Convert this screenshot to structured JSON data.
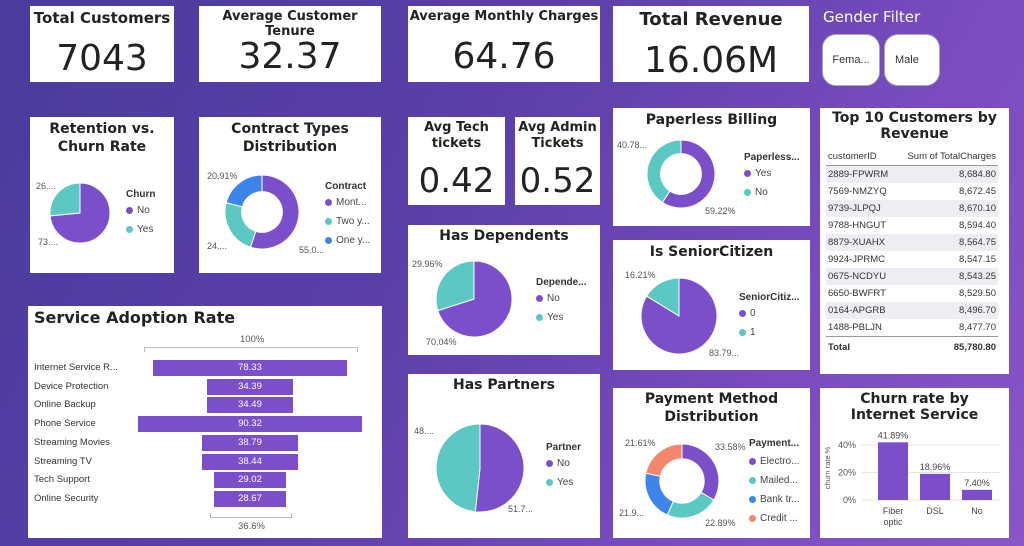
{
  "kpis": {
    "total_customers": {
      "title": "Total Customers",
      "value": "7043"
    },
    "avg_tenure": {
      "title": "Average Customer Tenure",
      "value": "32.37"
    },
    "avg_monthly": {
      "title": "Average Monthly Charges",
      "value": "64.76"
    },
    "total_revenue": {
      "title": "Total Revenue",
      "value": "16.06M"
    },
    "avg_tech": {
      "title": "Avg Tech tickets",
      "value": "0.42"
    },
    "avg_admin": {
      "title": "Avg Admin Tickets",
      "value": "0.52"
    }
  },
  "gender_filter": {
    "title": "Gender Filter",
    "buttons": [
      "Fema...",
      "Male"
    ]
  },
  "colors": {
    "purple": "#7b4fc9",
    "teal": "#5bc8c3",
    "blue": "#3d85e8",
    "salmon": "#f2876b"
  },
  "retention": {
    "title_line1": "Retention vs.",
    "title_line2": "Churn Rate",
    "legend_title": "Churn",
    "legend": [
      "No",
      "Yes"
    ],
    "label_yes": "26....",
    "label_no": "73....",
    "values": [
      73.46,
      26.54
    ]
  },
  "contract": {
    "title_line1": "Contract Types",
    "title_line2": "Distribution",
    "legend_title": "Contract",
    "legend": [
      "Mont...",
      "Two y...",
      "One y..."
    ],
    "label_one": "20.91%",
    "label_two": "24....",
    "label_month": "55.0...",
    "values": [
      55.02,
      24.07,
      20.91
    ]
  },
  "paperless": {
    "title": "Paperless Billing",
    "legend_title": "Paperless...",
    "legend": [
      "Yes",
      "No"
    ],
    "label_no": "40.78...",
    "label_yes": "59.22%",
    "values": [
      59.22,
      40.78
    ]
  },
  "top10": {
    "title_line1": "Top 10 Customers by",
    "title_line2": "Revenue",
    "col1": "customerID",
    "col2": "Sum of TotalCharges",
    "rows": [
      {
        "id": "2889-FPWRM",
        "val": "8,684.80"
      },
      {
        "id": "7569-NMZYQ",
        "val": "8,672.45"
      },
      {
        "id": "9739-JLPQJ",
        "val": "8,670.10"
      },
      {
        "id": "9788-HNGUT",
        "val": "8,594.40"
      },
      {
        "id": "8879-XUAHX",
        "val": "8,564.75"
      },
      {
        "id": "9924-JPRMC",
        "val": "8,547.15"
      },
      {
        "id": "0675-NCDYU",
        "val": "8,543.25"
      },
      {
        "id": "6650-BWFRT",
        "val": "8,529.50"
      },
      {
        "id": "0164-APGRB",
        "val": "8,496.70"
      },
      {
        "id": "1488-PBLJN",
        "val": "8,477.70"
      }
    ],
    "total_label": "Total",
    "total_val": "85,780.80"
  },
  "dependents": {
    "title": "Has Dependents",
    "legend_title": "Depende...",
    "legend": [
      "No",
      "Yes"
    ],
    "label_yes": "29.96%",
    "label_no": "70.04%",
    "values": [
      70.04,
      29.96
    ]
  },
  "senior": {
    "title": "Is SeniorCitizen",
    "legend_title": "SeniorCitiz...",
    "legend": [
      "0",
      "1"
    ],
    "label_one": "16.21%",
    "label_zero": "83.79...",
    "values": [
      83.79,
      16.21
    ]
  },
  "partners": {
    "title": "Has Partners",
    "legend_title": "Partner",
    "legend": [
      "No",
      "Yes"
    ],
    "label_yes": "48....",
    "label_no": "51.7...",
    "values": [
      51.7,
      48.3
    ]
  },
  "payment": {
    "title_line1": "Payment Method",
    "title_line2": "Distribution",
    "legend_title": "Payment...",
    "legend": [
      "Electro...",
      "Mailed...",
      "Bank tr...",
      "Credit ..."
    ],
    "label_credit": "21.61%",
    "label_elec": "33.58%",
    "label_bank": "21.9...",
    "label_mail": "22.89%",
    "values": [
      33.58,
      22.89,
      21.92,
      21.61
    ]
  },
  "service": {
    "title": "Service Adoption Rate",
    "top_label": "100%",
    "bottom_label": "36.6%",
    "items": [
      {
        "label": "Internet Service R...",
        "value": 78.33
      },
      {
        "label": "Device Protection",
        "value": 34.39
      },
      {
        "label": "Online Backup",
        "value": 34.49
      },
      {
        "label": "Phone Service",
        "value": 90.32
      },
      {
        "label": "Streaming Movies",
        "value": 38.79
      },
      {
        "label": "Streaming TV",
        "value": 38.44
      },
      {
        "label": "Tech Support",
        "value": 29.02
      },
      {
        "label": "Online Security",
        "value": 28.67
      }
    ]
  },
  "chart_data": {
    "type": "bar",
    "title": "Churn rate by Internet Service",
    "ylabel": "churn rate %",
    "categories": [
      "Fiber optic",
      "DSL",
      "No"
    ],
    "values": [
      41.89,
      18.96,
      7.4
    ],
    "value_labels": [
      "41.89%",
      "18.96%",
      "7.40%"
    ],
    "yticks": [
      "0%",
      "20%",
      "40%"
    ],
    "ylim": [
      0,
      45
    ]
  }
}
